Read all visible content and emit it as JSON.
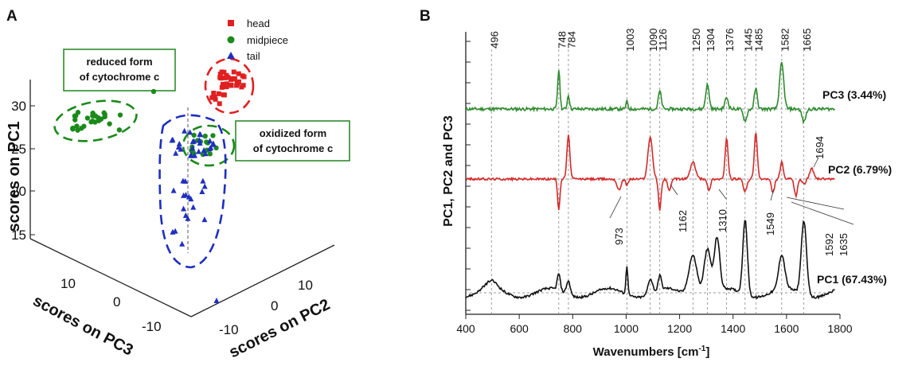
{
  "chart_data": [
    {
      "panel": "A",
      "type": "scatter",
      "projection": "3d",
      "axes": {
        "z_label": "scores on PC1",
        "x_label": "scores on PC2",
        "y_label": "scores on PC3",
        "z_ticks": [
          "30",
          "25",
          "20",
          "15"
        ],
        "x_ticks": [
          "10",
          "0",
          "-10"
        ],
        "y_ticks": [
          "10",
          "0",
          "-10"
        ]
      },
      "legend": [
        {
          "label": "head",
          "color": "#e02020",
          "marker": "square"
        },
        {
          "label": "midpiece",
          "color": "#1a8a1a",
          "marker": "circle"
        },
        {
          "label": "tail",
          "color": "#1f2fbf",
          "marker": "triangle"
        }
      ],
      "annotations": [
        {
          "line1": "reduced form",
          "line2": "of cytochrome c",
          "color": "#1a8a1a"
        },
        {
          "line1": "oxidized form",
          "line2": "of cytochrome c",
          "color": "#1a8a1a"
        }
      ]
    },
    {
      "panel": "B",
      "type": "line",
      "xlabel": "Wavenumbers [cm",
      "xlabel_sup": "-1",
      "xlabel_end": "]",
      "ylabel": "PC1, PC2 and PC3",
      "xlim": [
        400,
        1800
      ],
      "x_ticks": [
        400,
        600,
        800,
        1000,
        1200,
        1400,
        1600,
        1800
      ],
      "x_tick_labels": [
        "400",
        "600",
        "800",
        "1000",
        "1200",
        "1400",
        "1600",
        "1800"
      ],
      "marked_bands": [
        496,
        748,
        784,
        1003,
        1090,
        1126,
        1250,
        1304,
        1376,
        1445,
        1485,
        1582,
        1665
      ],
      "marked_band_labels": [
        "496",
        "748",
        "784",
        "1003",
        "1090",
        "1126",
        "1250",
        "1304",
        "1376",
        "1445",
        "1485",
        "1582",
        "1665"
      ],
      "series": [
        {
          "name": "PC3 (3.44%)",
          "color": "#2e8b2e",
          "baseline": 0.0,
          "noise": 0.05,
          "peaks": [
            [
              748,
              0.62,
              6
            ],
            [
              784,
              0.22,
              6
            ],
            [
              1003,
              0.12,
              5
            ],
            [
              1126,
              0.28,
              8
            ],
            [
              1304,
              0.38,
              9
            ],
            [
              1376,
              0.18,
              9
            ],
            [
              1445,
              -0.18,
              10
            ],
            [
              1485,
              0.32,
              8
            ],
            [
              1582,
              0.72,
              11
            ],
            [
              1665,
              -0.2,
              10
            ]
          ]
        },
        {
          "name": "PC2 (6.79%)",
          "color": "#d42a2a",
          "baseline": 0.0,
          "noise": 0.04,
          "peaks": [
            [
              748,
              -0.55,
              6
            ],
            [
              784,
              0.78,
              8
            ],
            [
              973,
              -0.2,
              10
            ],
            [
              1003,
              -0.12,
              6
            ],
            [
              1090,
              0.75,
              12
            ],
            [
              1126,
              -0.55,
              7
            ],
            [
              1162,
              -0.22,
              8
            ],
            [
              1250,
              0.3,
              14
            ],
            [
              1310,
              -0.22,
              7
            ],
            [
              1376,
              0.72,
              8
            ],
            [
              1445,
              -0.22,
              10
            ],
            [
              1485,
              0.82,
              8
            ],
            [
              1549,
              -0.25,
              8
            ],
            [
              1582,
              0.3,
              8
            ],
            [
              1635,
              -0.3,
              8
            ],
            [
              1665,
              -0.1,
              8
            ],
            [
              1694,
              0.2,
              10
            ]
          ]
        },
        {
          "name": "PC1 (67.43%)",
          "color": "#111111",
          "baseline": 0.0,
          "noise": 0.03,
          "peaks": [
            [
              496,
              0.1,
              30
            ],
            [
              748,
              0.22,
              8
            ],
            [
              784,
              0.18,
              10
            ],
            [
              1003,
              0.38,
              5
            ],
            [
              1090,
              0.2,
              12
            ],
            [
              1126,
              0.2,
              8
            ],
            [
              1250,
              0.55,
              22
            ],
            [
              1304,
              0.6,
              18
            ],
            [
              1340,
              0.7,
              14
            ],
            [
              1445,
              1.0,
              12
            ],
            [
              1582,
              0.45,
              16
            ],
            [
              1665,
              0.98,
              14
            ]
          ]
        }
      ],
      "peak_callouts": [
        "973",
        "1162",
        "1310",
        "1549",
        "1694",
        "1592",
        "1635"
      ]
    }
  ],
  "panel_labels": {
    "a": "A",
    "b": "B"
  }
}
